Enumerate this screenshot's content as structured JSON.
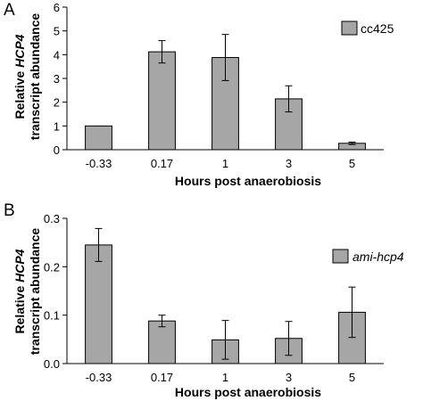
{
  "chart_data": [
    {
      "panel_label": "A",
      "type": "bar",
      "categories": [
        "-0.33",
        "0.17",
        "1",
        "3",
        "5"
      ],
      "values": [
        1.0,
        4.12,
        3.88,
        2.14,
        0.27
      ],
      "errors": [
        0.0,
        0.47,
        0.97,
        0.55,
        0.05
      ],
      "series": [
        {
          "name": "cc425",
          "values": [
            1.0,
            4.12,
            3.88,
            2.14,
            0.27
          ]
        }
      ],
      "xlabel": "Hours post anaerobiosis",
      "ylabel_prefix": "Relative",
      "ylabel_italic": "HCP4",
      "ylabel_line2": "transcript abundance",
      "ylim": [
        0,
        6
      ],
      "yticks": [
        "0",
        "1",
        "2",
        "3",
        "4",
        "5",
        "6"
      ],
      "legend_name_italic": false,
      "bar_color": "#a6a6a6",
      "grid": false,
      "legend_position": "top-right"
    },
    {
      "panel_label": "B",
      "type": "bar",
      "categories": [
        "-0.33",
        "0.17",
        "1",
        "3",
        "5"
      ],
      "values": [
        0.245,
        0.088,
        0.049,
        0.052,
        0.106
      ],
      "errors": [
        0.034,
        0.012,
        0.04,
        0.035,
        0.052
      ],
      "series": [
        {
          "name": "ami-hcp4",
          "values": [
            0.245,
            0.088,
            0.049,
            0.052,
            0.106
          ]
        }
      ],
      "xlabel": "Hours post anaerobiosis",
      "ylabel_prefix": "Relative",
      "ylabel_italic": "HCP4",
      "ylabel_line2": "transcript abundance",
      "ylim": [
        0,
        0.3
      ],
      "yticks": [
        "0.0",
        "0.1",
        "0.2",
        "0.3"
      ],
      "legend_name_italic": true,
      "bar_color": "#a6a6a6",
      "grid": false,
      "legend_position": "top-right"
    }
  ]
}
